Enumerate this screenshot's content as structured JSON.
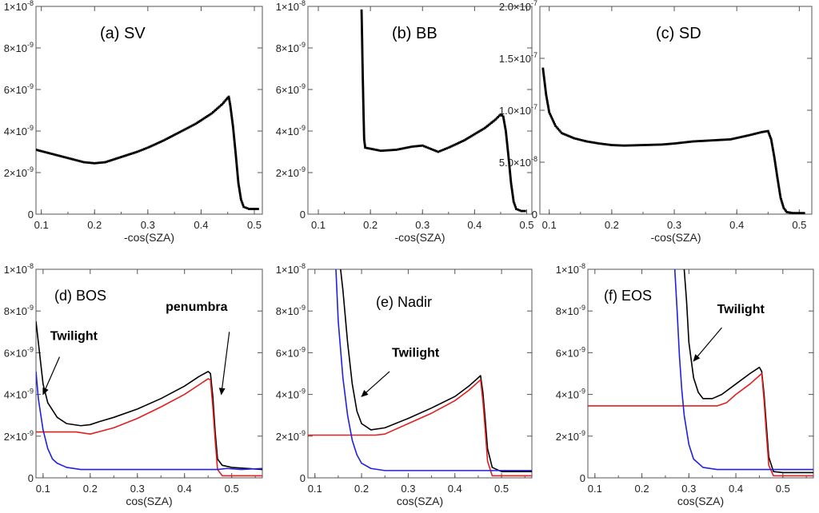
{
  "chart_data": [
    {
      "type": "scatter",
      "panel": "(a) SV",
      "title": "(a) SV",
      "xlabel": "-cos(SZA)",
      "xlim": [
        0.09,
        0.515
      ],
      "ylim": [
        0,
        1e-08
      ],
      "xticks": [
        "0.1",
        "0.2",
        "0.3",
        "0.4",
        "0.5"
      ],
      "yticks": [
        {
          "v": 0,
          "base": "0",
          "exp": ""
        },
        {
          "v": 2e-09,
          "base": "2×10",
          "exp": "-9"
        },
        {
          "v": 4e-09,
          "base": "4×10",
          "exp": "-9"
        },
        {
          "v": 6e-09,
          "base": "6×10",
          "exp": "-9"
        },
        {
          "v": 8e-09,
          "base": "8×10",
          "exp": "-9"
        },
        {
          "v": 1e-08,
          "base": "1×10",
          "exp": "-8"
        }
      ],
      "series": [
        {
          "color": "#000000",
          "x": [
            0.09,
            0.12,
            0.15,
            0.18,
            0.2,
            0.22,
            0.25,
            0.28,
            0.3,
            0.33,
            0.36,
            0.39,
            0.42,
            0.44,
            0.45,
            0.452,
            0.455,
            0.46,
            0.465,
            0.47,
            0.475,
            0.48,
            0.49,
            0.5,
            0.51
          ],
          "y": [
            3.1e-09,
            2.9e-09,
            2.7e-09,
            2.5e-09,
            2.45e-09,
            2.5e-09,
            2.75e-09,
            3e-09,
            3.2e-09,
            3.55e-09,
            3.95e-09,
            4.35e-09,
            4.85e-09,
            5.3e-09,
            5.6e-09,
            5.65e-09,
            5.2e-09,
            4.2e-09,
            2.9e-09,
            1.5e-09,
            7e-10,
            3.5e-10,
            2.5e-10,
            2.5e-10,
            2.5e-10
          ]
        }
      ]
    },
    {
      "type": "scatter",
      "panel": "(b) BB",
      "title": "(b) BB",
      "xlabel": "-cos(SZA)",
      "xlim": [
        0.08,
        0.51
      ],
      "ylim": [
        0,
        1e-08
      ],
      "xticks": [
        "0.1",
        "0.2",
        "0.3",
        "0.4",
        "0.5"
      ],
      "yticks": [
        {
          "v": 0,
          "base": "0",
          "exp": ""
        },
        {
          "v": 2e-09,
          "base": "2×10",
          "exp": "-9"
        },
        {
          "v": 4e-09,
          "base": "4×10",
          "exp": "-9"
        },
        {
          "v": 6e-09,
          "base": "6×10",
          "exp": "-9"
        },
        {
          "v": 8e-09,
          "base": "8×10",
          "exp": "-9"
        },
        {
          "v": 1e-08,
          "base": "1×10",
          "exp": "-8"
        }
      ],
      "series": [
        {
          "color": "#000000",
          "x": [
            0.183,
            0.184,
            0.185,
            0.186,
            0.187,
            0.188,
            0.19,
            0.2,
            0.22,
            0.25,
            0.28,
            0.3,
            0.32,
            0.33,
            0.35,
            0.38,
            0.4,
            0.42,
            0.44,
            0.45,
            0.455,
            0.46,
            0.465,
            0.47,
            0.475,
            0.48,
            0.49,
            0.5
          ],
          "y": [
            9.8e-09,
            8.5e-09,
            7e-09,
            5.8e-09,
            4.6e-09,
            3.6e-09,
            3.2e-09,
            3.15e-09,
            3.05e-09,
            3.1e-09,
            3.25e-09,
            3.3e-09,
            3.1e-09,
            3e-09,
            3.2e-09,
            3.55e-09,
            3.85e-09,
            4.15e-09,
            4.55e-09,
            4.8e-09,
            4.7e-09,
            4e-09,
            2.8e-09,
            1.5e-09,
            6e-10,
            2.5e-10,
            1.5e-10,
            1.5e-10
          ]
        }
      ]
    },
    {
      "type": "scatter",
      "panel": "(c) SD",
      "title": "(c) SD",
      "xlabel": "-cos(SZA)",
      "xlim": [
        0.085,
        0.52
      ],
      "ylim": [
        0,
        2e-07
      ],
      "xticks": [
        "0.1",
        "0.2",
        "0.3",
        "0.4",
        "0.5"
      ],
      "yticks": [
        {
          "v": 0,
          "base": "0",
          "exp": ""
        },
        {
          "v": 5e-08,
          "base": "5.0×10",
          "exp": "-8"
        },
        {
          "v": 1e-07,
          "base": "1.0×10",
          "exp": "-7"
        },
        {
          "v": 1.5e-07,
          "base": "1.5×10",
          "exp": "-7"
        },
        {
          "v": 2e-07,
          "base": "2.0×10",
          "exp": "-7"
        }
      ],
      "series": [
        {
          "color": "#000000",
          "x": [
            0.09,
            0.095,
            0.1,
            0.11,
            0.12,
            0.14,
            0.16,
            0.18,
            0.2,
            0.22,
            0.25,
            0.28,
            0.3,
            0.33,
            0.36,
            0.39,
            0.42,
            0.44,
            0.45,
            0.455,
            0.46,
            0.465,
            0.47,
            0.475,
            0.48,
            0.49,
            0.5,
            0.51
          ],
          "y": [
            1.4e-07,
            1.15e-07,
            9.8e-08,
            8.5e-08,
            7.8e-08,
            7.3e-08,
            7e-08,
            6.8e-08,
            6.65e-08,
            6.6e-08,
            6.65e-08,
            6.7e-08,
            6.8e-08,
            7e-08,
            7.1e-08,
            7.2e-08,
            7.6e-08,
            7.9e-08,
            8e-08,
            7.2e-08,
            5.5e-08,
            3.5e-08,
            1.6e-08,
            6e-09,
            2e-09,
            1e-09,
            1e-09,
            1e-09
          ]
        }
      ]
    },
    {
      "type": "line",
      "panel": "(d) BOS",
      "title": "(d) BOS",
      "xlabel": "cos(SZA)",
      "xlim": [
        0.085,
        0.565
      ],
      "ylim": [
        0,
        1e-08
      ],
      "xticks": [
        "0.1",
        "0.2",
        "0.3",
        "0.4",
        "0.5"
      ],
      "yticks": [
        {
          "v": 0,
          "base": "0",
          "exp": ""
        },
        {
          "v": 2e-09,
          "base": "2×10",
          "exp": "-9"
        },
        {
          "v": 4e-09,
          "base": "4×10",
          "exp": "-9"
        },
        {
          "v": 6e-09,
          "base": "6×10",
          "exp": "-9"
        },
        {
          "v": 8e-09,
          "base": "8×10",
          "exp": "-9"
        },
        {
          "v": 1e-08,
          "base": "1×10",
          "exp": "-8"
        }
      ],
      "annotations": [
        {
          "text": "Twilight",
          "x": 0.115,
          "y": 6.6e-09,
          "arrow_x1": 0.135,
          "arrow_y1": 5.8e-09,
          "arrow_x2": 0.1,
          "arrow_y2": 4e-09
        },
        {
          "text": "penumbra",
          "x": 0.36,
          "y": 8e-09,
          "arrow_x1": 0.495,
          "arrow_y1": 7e-09,
          "arrow_x2": 0.478,
          "arrow_y2": 4e-09
        }
      ],
      "series": [
        {
          "color": "#000000",
          "x": [
            0.085,
            0.09,
            0.1,
            0.11,
            0.13,
            0.15,
            0.18,
            0.2,
            0.22,
            0.25,
            0.3,
            0.35,
            0.4,
            0.43,
            0.45,
            0.455,
            0.46,
            0.465,
            0.47,
            0.48,
            0.5,
            0.565
          ],
          "y": [
            7.5e-09,
            6.5e-09,
            4.5e-09,
            3.6e-09,
            2.9e-09,
            2.6e-09,
            2.5e-09,
            2.55e-09,
            2.7e-09,
            2.9e-09,
            3.3e-09,
            3.8e-09,
            4.4e-09,
            4.85e-09,
            5.1e-09,
            5e-09,
            3.9e-09,
            2.2e-09,
            9e-10,
            6e-10,
            5e-10,
            4e-10
          ]
        },
        {
          "color": "#e02020",
          "x": [
            0.085,
            0.17,
            0.2,
            0.25,
            0.3,
            0.35,
            0.4,
            0.43,
            0.45,
            0.455,
            0.46,
            0.465,
            0.47,
            0.48,
            0.565
          ],
          "y": [
            2.2e-09,
            2.2e-09,
            2.1e-09,
            2.4e-09,
            2.85e-09,
            3.4e-09,
            4e-09,
            4.45e-09,
            4.75e-09,
            4.7e-09,
            3.4e-09,
            1.8e-09,
            4e-10,
            1e-10,
            1e-10
          ]
        },
        {
          "color": "#2020e0",
          "x": [
            0.085,
            0.09,
            0.1,
            0.11,
            0.12,
            0.13,
            0.15,
            0.18,
            0.22,
            0.3,
            0.4,
            0.47,
            0.49,
            0.52,
            0.565
          ],
          "y": [
            5.1e-09,
            3.8e-09,
            2.3e-09,
            1.4e-09,
            9e-10,
            7e-10,
            5e-10,
            4e-10,
            4e-10,
            4e-10,
            4e-10,
            4e-10,
            4.5e-10,
            4e-10,
            4.5e-10
          ]
        }
      ]
    },
    {
      "type": "line",
      "panel": "(e) Nadir",
      "title": "(e) Nadir",
      "xlabel": "cos(SZA)",
      "xlim": [
        0.085,
        0.565
      ],
      "ylim": [
        0,
        1e-08
      ],
      "xticks": [
        "0.1",
        "0.2",
        "0.3",
        "0.4",
        "0.5"
      ],
      "yticks": [
        {
          "v": 0,
          "base": "0",
          "exp": ""
        },
        {
          "v": 2e-09,
          "base": "2×10",
          "exp": "-9"
        },
        {
          "v": 4e-09,
          "base": "4×10",
          "exp": "-9"
        },
        {
          "v": 6e-09,
          "base": "6×10",
          "exp": "-9"
        },
        {
          "v": 8e-09,
          "base": "8×10",
          "exp": "-9"
        },
        {
          "v": 1e-08,
          "base": "1×10",
          "exp": "-8"
        }
      ],
      "annotations": [
        {
          "text": "Twilight",
          "x": 0.265,
          "y": 5.8e-09,
          "arrow_x1": 0.26,
          "arrow_y1": 5.1e-09,
          "arrow_x2": 0.2,
          "arrow_y2": 3.9e-09
        }
      ],
      "series": [
        {
          "color": "#000000",
          "x": [
            0.155,
            0.16,
            0.17,
            0.18,
            0.19,
            0.2,
            0.22,
            0.25,
            0.3,
            0.35,
            0.4,
            0.43,
            0.45,
            0.455,
            0.46,
            0.465,
            0.47,
            0.48,
            0.5,
            0.565
          ],
          "y": [
            1e-08,
            9e-09,
            6.5e-09,
            4.5e-09,
            3.2e-09,
            2.6e-09,
            2.3e-09,
            2.4e-09,
            2.85e-09,
            3.35e-09,
            3.9e-09,
            4.4e-09,
            4.8e-09,
            4.9e-09,
            4.1e-09,
            2.8e-09,
            1.4e-09,
            5e-10,
            3e-10,
            3e-10
          ]
        },
        {
          "color": "#e02020",
          "x": [
            0.085,
            0.23,
            0.25,
            0.3,
            0.35,
            0.4,
            0.43,
            0.45,
            0.455,
            0.46,
            0.465,
            0.47,
            0.48,
            0.565
          ],
          "y": [
            2.05e-09,
            2.05e-09,
            2.1e-09,
            2.6e-09,
            3.1e-09,
            3.7e-09,
            4.2e-09,
            4.6e-09,
            4.7e-09,
            3.7e-09,
            2.3e-09,
            8e-10,
            1e-10,
            1e-10
          ]
        },
        {
          "color": "#2020e0",
          "x": [
            0.145,
            0.15,
            0.16,
            0.17,
            0.18,
            0.19,
            0.2,
            0.22,
            0.25,
            0.3,
            0.4,
            0.48,
            0.52,
            0.565
          ],
          "y": [
            1e-08,
            7.5e-09,
            4.8e-09,
            3e-09,
            1.8e-09,
            1.1e-09,
            7e-10,
            4.5e-10,
            3.5e-10,
            3.5e-10,
            3.5e-10,
            3.5e-10,
            3.5e-10,
            3.5e-10
          ]
        }
      ]
    },
    {
      "type": "line",
      "panel": "(f) EOS",
      "title": "(f) EOS",
      "xlabel": "cos(SZA)",
      "xlim": [
        0.085,
        0.565
      ],
      "ylim": [
        0,
        1e-08
      ],
      "xticks": [
        "0.1",
        "0.2",
        "0.3",
        "0.4",
        "0.5"
      ],
      "yticks": [
        {
          "v": 0,
          "base": "0",
          "exp": ""
        },
        {
          "v": 2e-09,
          "base": "2×10",
          "exp": "-9"
        },
        {
          "v": 4e-09,
          "base": "4×10",
          "exp": "-9"
        },
        {
          "v": 6e-09,
          "base": "6×10",
          "exp": "-9"
        },
        {
          "v": 8e-09,
          "base": "8×10",
          "exp": "-9"
        },
        {
          "v": 1e-08,
          "base": "1×10",
          "exp": "-8"
        }
      ],
      "annotations": [
        {
          "text": "Twilight",
          "x": 0.36,
          "y": 7.9e-09,
          "arrow_x1": 0.37,
          "arrow_y1": 7.2e-09,
          "arrow_x2": 0.31,
          "arrow_y2": 5.6e-09
        }
      ],
      "series": [
        {
          "color": "#000000",
          "x": [
            0.29,
            0.295,
            0.3,
            0.31,
            0.32,
            0.33,
            0.35,
            0.37,
            0.4,
            0.43,
            0.45,
            0.455,
            0.46,
            0.465,
            0.47,
            0.48,
            0.5,
            0.565
          ],
          "y": [
            1e-08,
            8.5e-09,
            6.5e-09,
            4.8e-09,
            4.1e-09,
            3.8e-09,
            3.8e-09,
            4e-09,
            4.5e-09,
            5e-09,
            5.3e-09,
            5.1e-09,
            4e-09,
            2.5e-09,
            1e-09,
            3e-10,
            2.5e-10,
            2.5e-10
          ]
        },
        {
          "color": "#e02020",
          "x": [
            0.085,
            0.36,
            0.38,
            0.4,
            0.43,
            0.45,
            0.455,
            0.46,
            0.465,
            0.47,
            0.48,
            0.565
          ],
          "y": [
            3.45e-09,
            3.45e-09,
            3.6e-09,
            4e-09,
            4.5e-09,
            4.9e-09,
            5e-09,
            3.7e-09,
            2.1e-09,
            6e-10,
            1e-10,
            1e-10
          ]
        },
        {
          "color": "#2020e0",
          "x": [
            0.27,
            0.275,
            0.28,
            0.285,
            0.29,
            0.3,
            0.31,
            0.33,
            0.36,
            0.4,
            0.45,
            0.5,
            0.565
          ],
          "y": [
            1e-08,
            8e-09,
            5.8e-09,
            4.2e-09,
            3e-09,
            1.6e-09,
            9e-10,
            5e-10,
            4e-10,
            4e-10,
            4e-10,
            4e-10,
            4e-10
          ]
        }
      ]
    }
  ]
}
